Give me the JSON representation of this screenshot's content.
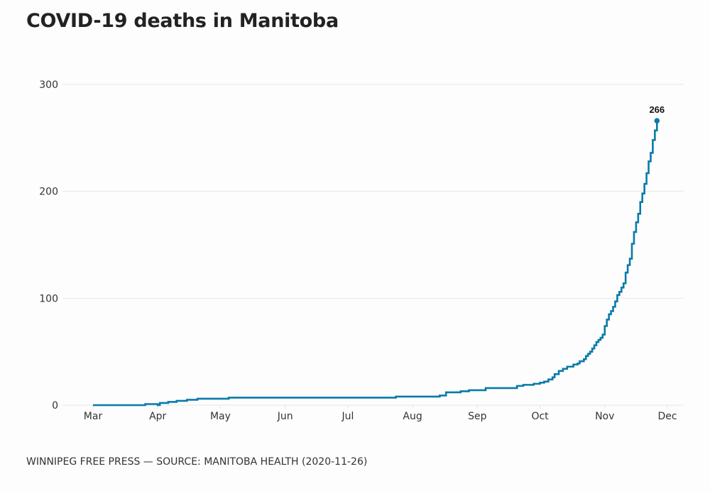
{
  "title": "COVID-19 deaths in Manitoba",
  "footer": "WINNIPEG FREE PRESS — SOURCE: MANITOBA HEALTH (2020-11-26)",
  "colors": {
    "line": "#0a7aa8",
    "grid": "#e6e6e6",
    "text": "#333333"
  },
  "chart_data": {
    "type": "line",
    "title": "COVID-19 deaths in Manitoba",
    "xlabel": "",
    "ylabel": "",
    "step": true,
    "grid": true,
    "ylim": [
      0,
      300
    ],
    "yticks": [
      0,
      100,
      200,
      300
    ],
    "ytick_labels": [
      "0",
      "100",
      "200",
      "300"
    ],
    "xlim": [
      "2020-03-01",
      "2020-12-01"
    ],
    "xticks": [
      "2020-03-01",
      "2020-04-01",
      "2020-05-01",
      "2020-06-01",
      "2020-07-01",
      "2020-08-01",
      "2020-09-01",
      "2020-10-01",
      "2020-11-01",
      "2020-12-01"
    ],
    "xtick_labels": [
      "Mar",
      "Apr",
      "May",
      "Jun",
      "Jul",
      "Aug",
      "Sep",
      "Oct",
      "Nov",
      "Dec"
    ],
    "end_label": "266",
    "series": [
      {
        "name": "Deaths",
        "x": [
          "2020-03-01",
          "2020-03-26",
          "2020-04-01",
          "2020-04-02",
          "2020-04-06",
          "2020-04-10",
          "2020-04-15",
          "2020-04-20",
          "2020-05-05",
          "2020-07-24",
          "2020-08-14",
          "2020-08-17",
          "2020-08-24",
          "2020-08-28",
          "2020-09-05",
          "2020-09-20",
          "2020-09-23",
          "2020-09-28",
          "2020-10-01",
          "2020-10-03",
          "2020-10-05",
          "2020-10-07",
          "2020-10-08",
          "2020-10-10",
          "2020-10-12",
          "2020-10-14",
          "2020-10-17",
          "2020-10-19",
          "2020-10-20",
          "2020-10-22",
          "2020-10-23",
          "2020-10-24",
          "2020-10-25",
          "2020-10-26",
          "2020-10-27",
          "2020-10-28",
          "2020-10-29",
          "2020-10-30",
          "2020-10-31",
          "2020-11-01",
          "2020-11-02",
          "2020-11-03",
          "2020-11-04",
          "2020-11-05",
          "2020-11-06",
          "2020-11-07",
          "2020-11-08",
          "2020-11-09",
          "2020-11-10",
          "2020-11-11",
          "2020-11-12",
          "2020-11-13",
          "2020-11-14",
          "2020-11-15",
          "2020-11-16",
          "2020-11-17",
          "2020-11-18",
          "2020-11-19",
          "2020-11-20",
          "2020-11-21",
          "2020-11-22",
          "2020-11-23",
          "2020-11-24",
          "2020-11-25",
          "2020-11-26"
        ],
        "values": [
          0,
          1,
          0,
          2,
          3,
          4,
          5,
          6,
          7,
          8,
          9,
          12,
          13,
          14,
          16,
          18,
          19,
          20,
          21,
          22,
          24,
          26,
          29,
          32,
          34,
          36,
          38,
          39,
          41,
          43,
          46,
          48,
          50,
          53,
          56,
          59,
          61,
          63,
          66,
          74,
          80,
          85,
          88,
          92,
          97,
          103,
          106,
          110,
          114,
          124,
          131,
          137,
          151,
          162,
          171,
          179,
          190,
          198,
          207,
          217,
          228,
          236,
          248,
          257,
          266
        ]
      }
    ]
  }
}
